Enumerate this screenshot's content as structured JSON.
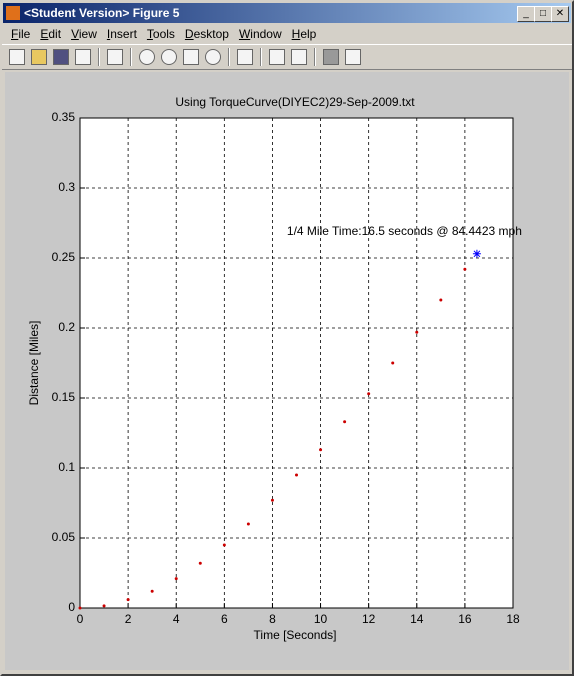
{
  "window": {
    "title": "<Student Version> Figure 5",
    "menu": [
      "File",
      "Edit",
      "View",
      "Insert",
      "Tools",
      "Desktop",
      "Window",
      "Help"
    ]
  },
  "chart_data": {
    "type": "line",
    "title": "Using TorqueCurve(DIYEC2)29-Sep-2009.txt",
    "xlabel": "Time [Seconds]",
    "ylabel": "Distance [Miles]",
    "annotation": "1/4 Mile Time:16.5 seconds @ 84.4423 mph",
    "x": [
      0,
      1,
      2,
      3,
      4,
      5,
      6,
      7,
      8,
      9,
      10,
      11,
      12,
      13,
      14,
      15,
      16,
      16.5
    ],
    "series": [
      {
        "color": "#cc0000",
        "values": [
          0,
          0.0015,
          0.006,
          0.012,
          0.021,
          0.032,
          0.045,
          0.06,
          0.077,
          0.095,
          0.113,
          0.133,
          0.153,
          0.175,
          0.197,
          0.22,
          0.242,
          0.253
        ]
      }
    ],
    "highlight": {
      "x": 16.5,
      "y": 0.253,
      "color": "#0000ff"
    },
    "xlim": [
      0,
      18
    ],
    "xticks": [
      0,
      2,
      4,
      6,
      8,
      10,
      12,
      14,
      16,
      18
    ],
    "ylim": [
      0,
      0.35
    ],
    "yticks": [
      0,
      0.05,
      0.1,
      0.15,
      0.2,
      0.25,
      0.3,
      0.35
    ],
    "grid": true
  }
}
